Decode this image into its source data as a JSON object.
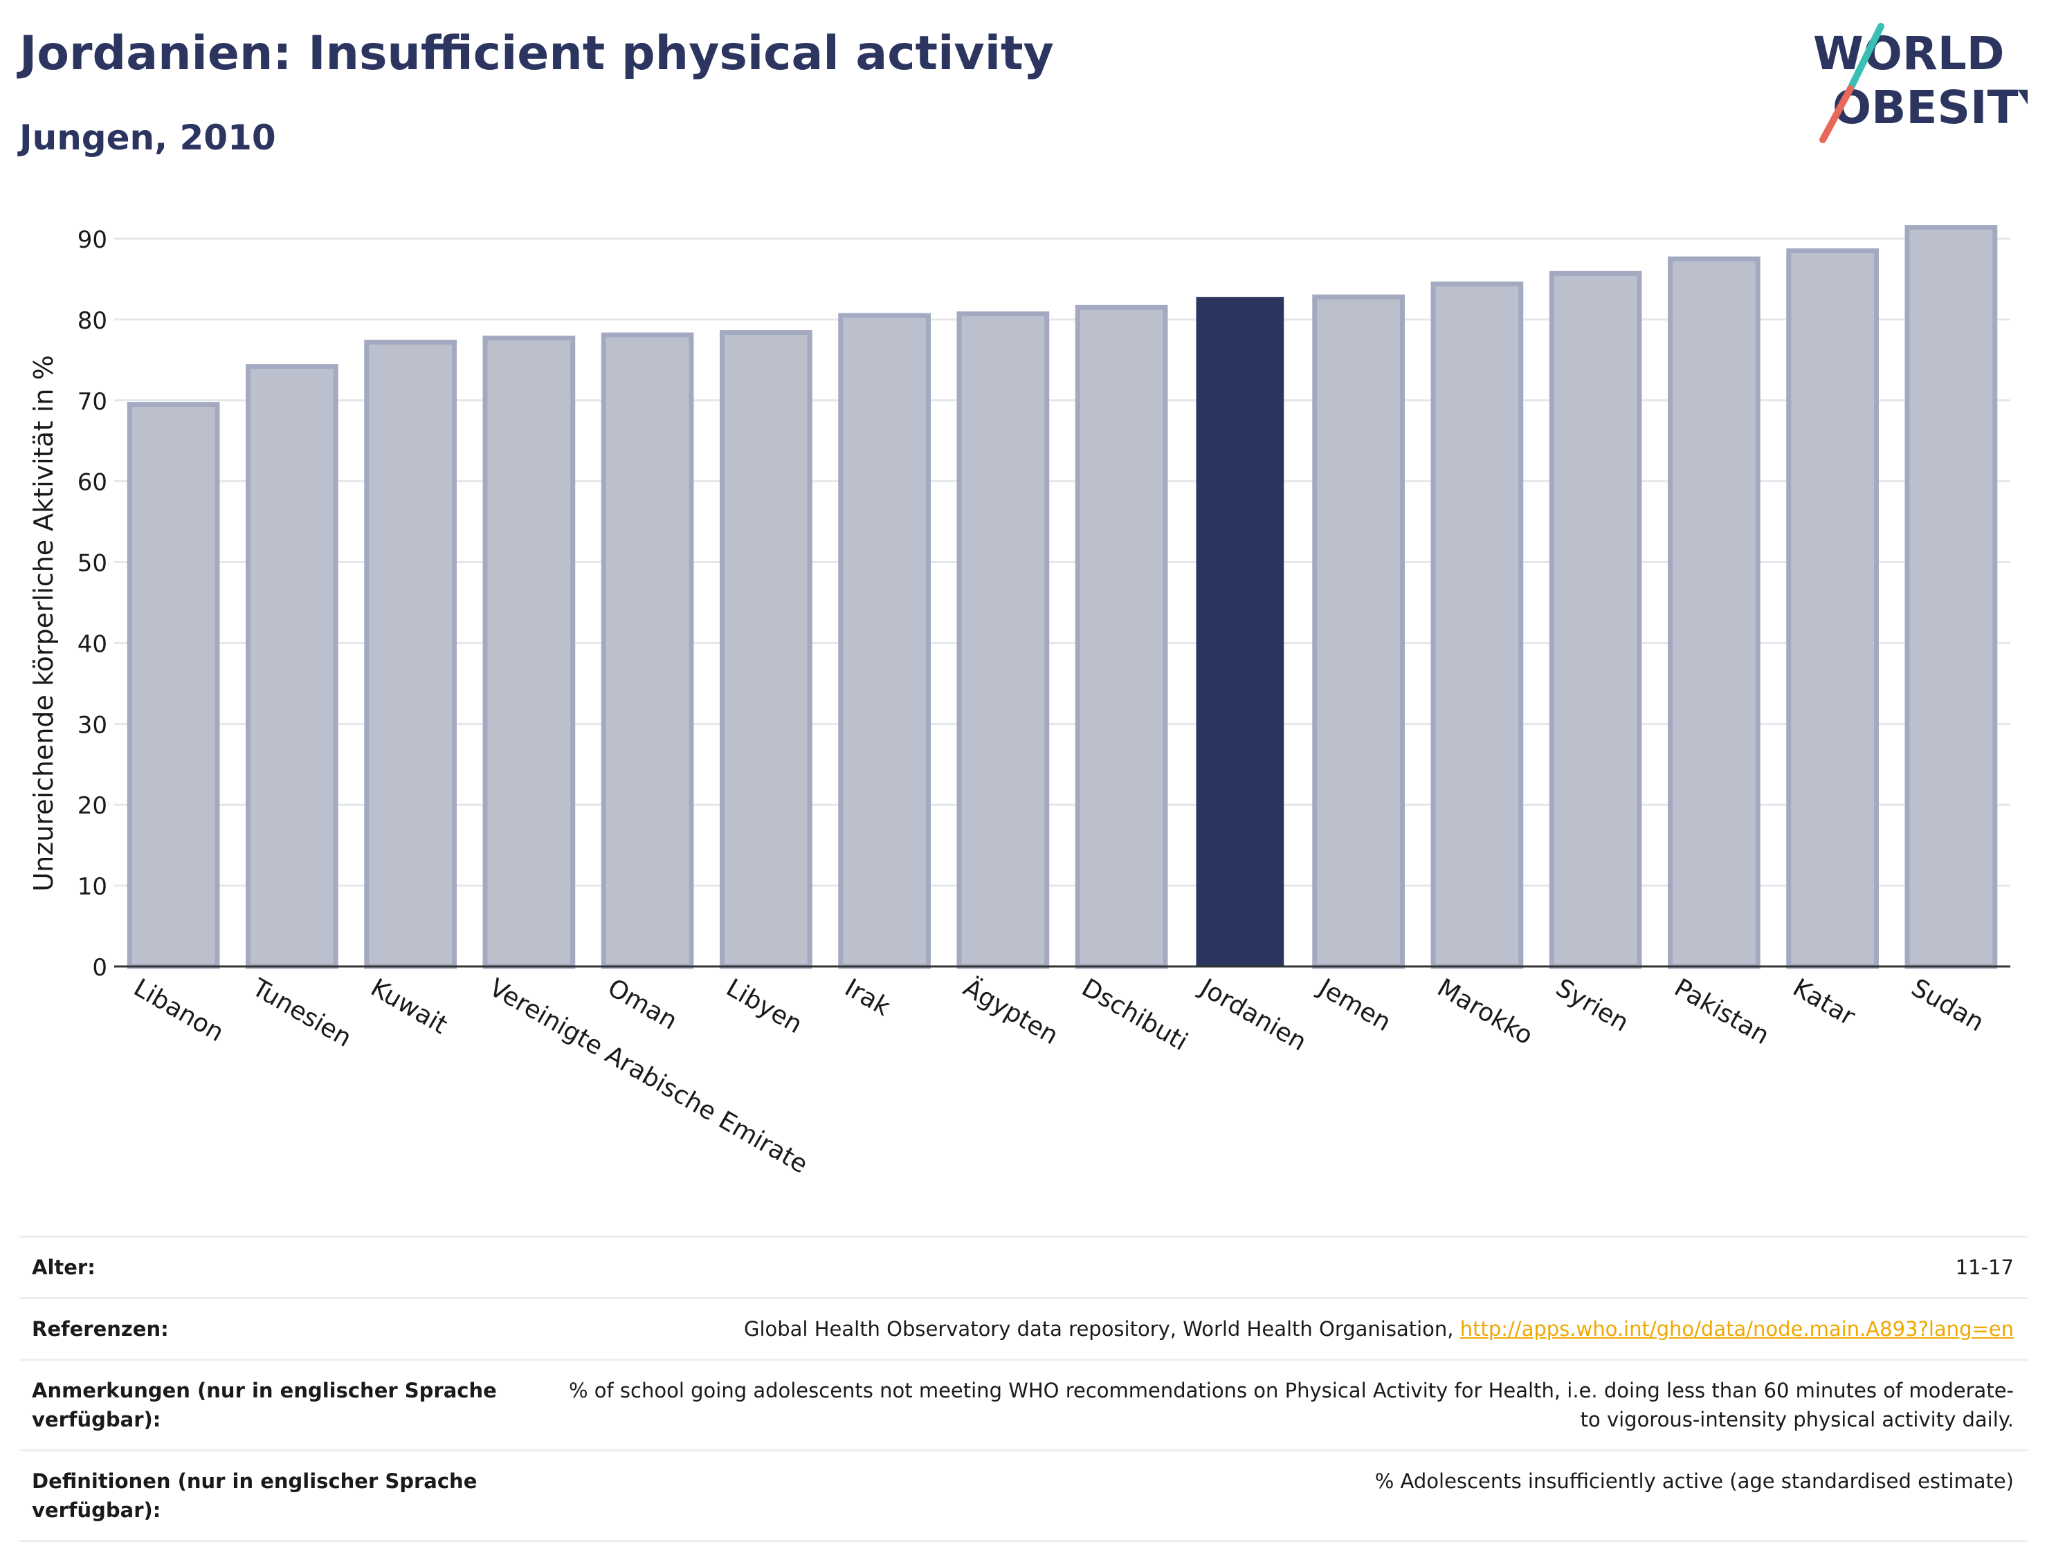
{
  "header": {
    "title": "Jordanien: Insufficient physical activity",
    "subtitle": "Jungen, 2010"
  },
  "logo": {
    "line1": "WORLD",
    "line2": "OBESITY",
    "text_color": "#2b3560",
    "slash_color_top": "#3bbfb5",
    "slash_color_bottom": "#e8685b"
  },
  "colors": {
    "highlight": "#2b3560",
    "bar": "#bcc0cd",
    "bar_outline": "#a3a9c0"
  },
  "chart_data": {
    "type": "bar",
    "categories": [
      "Libanon",
      "Tunesien",
      "Kuwait",
      "Vereinigte Arabische Emirate",
      "Oman",
      "Libyen",
      "Irak",
      "Ägypten",
      "Dschibuti",
      "Jordanien",
      "Jemen",
      "Marokko",
      "Syrien",
      "Pakistan",
      "Katar",
      "Sudan"
    ],
    "values": [
      69.5,
      74.2,
      77.2,
      77.7,
      78.1,
      78.4,
      80.5,
      80.7,
      81.5,
      82.8,
      82.8,
      84.4,
      85.7,
      87.5,
      88.5,
      91.4
    ],
    "highlight": "Jordanien",
    "ylabel": "Unzureichende körperliche Aktivität in %",
    "xlabel": "",
    "ylim": [
      0,
      90
    ],
    "yticks": [
      0,
      10,
      20,
      30,
      40,
      50,
      60,
      70,
      80,
      90
    ],
    "grid": true
  },
  "meta": {
    "age_label": "Alter:",
    "age_value": "11-17",
    "ref_label": "Referenzen:",
    "ref_text": "Global Health Observatory data repository, World Health Organisation, ",
    "ref_link": "http://apps.who.int/gho/data/node.main.A893?lang=en",
    "notes_label": "Anmerkungen (nur in englischer Sprache verfügbar):",
    "notes_value": "% of school going adolescents not meeting WHO recommendations on Physical Activity for Health, i.e. doing less than 60 minutes of moderate- to vigorous-intensity physical activity daily.",
    "def_label": "Definitionen (nur in englischer Sprache verfügbar):",
    "def_value": "% Adolescents insufficiently active (age standardised estimate)"
  }
}
